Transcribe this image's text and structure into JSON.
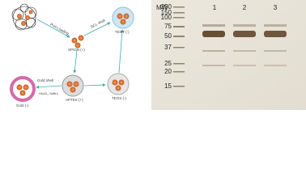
{
  "schematic": {
    "pva_loading": "PVA Loading",
    "spion": "SPION (+)",
    "sio2_shell": "SiO₂ shell",
    "teot": "TEOT (-)",
    "gold_shell": "Gold shell",
    "gold": "Gold (-)",
    "aptes": "APTES (+)",
    "teos": "TEOS (-)",
    "reagents": "HAuCl₄, NaBH₄"
  },
  "gel": {
    "ladder_label": "MW",
    "lanes": [
      "1",
      "2",
      "3"
    ],
    "markers": [
      "250",
      "150",
      "100",
      "75",
      "50",
      "37",
      "25",
      "20",
      "15"
    ]
  }
}
